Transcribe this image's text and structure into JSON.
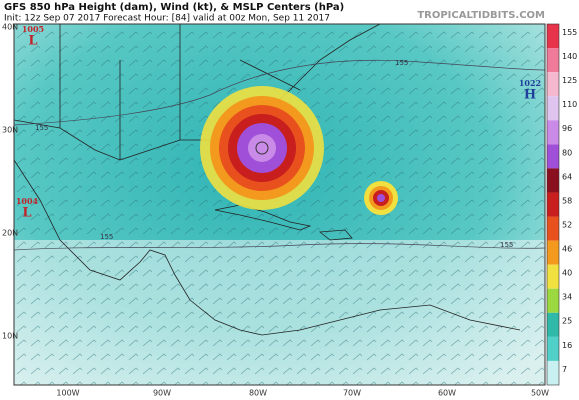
{
  "header": {
    "title": "GFS 850 hPa Height (dam), Wind (kt), & MSLP Centers (hPa)",
    "info": "Init: 12z Sep 07 2017   Forecast Hour: [84]   valid at 00z Mon, Sep 11 2017",
    "site": "TROPICALTIDBITS.COM"
  },
  "map": {
    "lat_labels": [
      "40N",
      "30N",
      "20N",
      "10N"
    ],
    "lon_labels": [
      "100W",
      "90W",
      "80W",
      "70W",
      "60W",
      "50W"
    ],
    "pressure_centers": [
      {
        "value": "1005",
        "symbol": "L"
      },
      {
        "value": "1004",
        "symbol": "L"
      },
      {
        "value": "1022",
        "symbol": "H"
      }
    ],
    "contour_labels": [
      "155",
      "155",
      "155",
      "155"
    ]
  },
  "colorbar": {
    "labels": [
      155,
      140,
      125,
      110,
      96,
      80,
      64,
      58,
      52,
      46,
      40,
      34,
      25,
      16,
      7
    ],
    "colors": [
      "#e8344a",
      "#f07a9a",
      "#f5b8cf",
      "#e0c4f0",
      "#c98ae8",
      "#a050d8",
      "#8a1020",
      "#c81e1e",
      "#e8501e",
      "#f39a1e",
      "#f0e040",
      "#9cd840",
      "#30b8a8",
      "#50d0c8",
      "#c8f0f0"
    ]
  }
}
